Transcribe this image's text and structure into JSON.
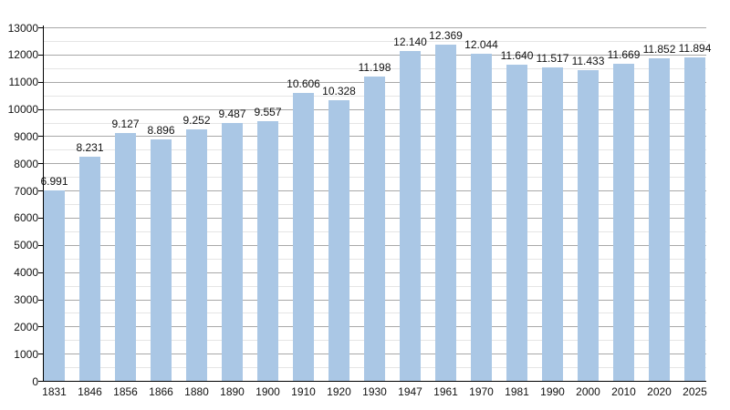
{
  "chart_data": {
    "type": "bar",
    "title": "",
    "xlabel": "",
    "ylabel": "",
    "categories": [
      "1831",
      "1846",
      "1856",
      "1866",
      "1880",
      "1890",
      "1900",
      "1910",
      "1920",
      "1930",
      "1947",
      "1961",
      "1970",
      "1981",
      "1990",
      "2000",
      "2010",
      "2020",
      "2025"
    ],
    "values": [
      6991,
      8231,
      9127,
      8896,
      9252,
      9487,
      9557,
      10606,
      10328,
      11198,
      12140,
      12369,
      12044,
      11640,
      11517,
      11433,
      11669,
      11852,
      11894
    ],
    "value_labels": [
      "6.991",
      "8.231",
      "9.127",
      "8.896",
      "9.252",
      "9.487",
      "9.557",
      "10.606",
      "10.328",
      "11.198",
      "12.140",
      "12.369",
      "12.044",
      "11.640",
      "11.517",
      "11.433",
      "11.669",
      "11.852",
      "11.894"
    ],
    "y_tick_labels": [
      "0",
      "1000",
      "2000",
      "3000",
      "4000",
      "5000",
      "6000",
      "7000",
      "8000",
      "9000",
      "10000",
      "11000",
      "12000",
      "13000"
    ],
    "ylim": [
      0,
      13000
    ],
    "y_major_step": 1000,
    "y_minor_step": 500,
    "grid": "on",
    "legend": "none",
    "colors": {
      "bar": "#aac7e5",
      "grid_major": "#a8a8a8",
      "grid_minor": "#e5e5e5",
      "axis": "#000000",
      "text": "#111111",
      "background": "#ffffff"
    }
  }
}
